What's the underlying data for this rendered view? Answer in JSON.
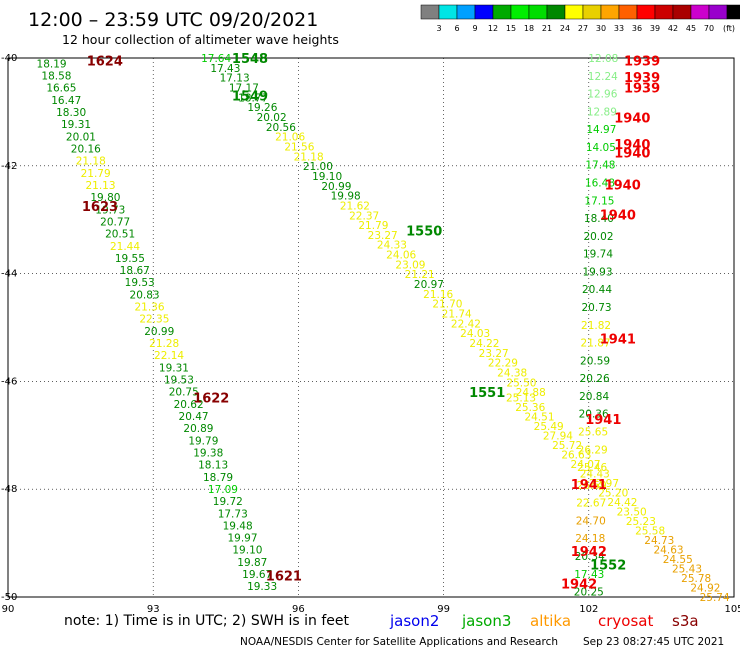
{
  "header": {
    "title": "12:00  – 23:59 UTC 09/20/2021",
    "subtitle": "12 hour collection of altimeter wave heights"
  },
  "colorbar": {
    "colors": [
      "#808080",
      "#00e5e5",
      "#00a0ff",
      "#0000ff",
      "#00aa00",
      "#00ee00",
      "#00dd00",
      "#008800",
      "#ffff00",
      "#e8d000",
      "#ffa500",
      "#ff6000",
      "#ff0000",
      "#cc0000",
      "#aa0000",
      "#cc00cc",
      "#9900cc",
      "#000000"
    ],
    "labels": [
      "3",
      "6",
      "9",
      "12",
      "15",
      "18",
      "21",
      "24",
      "27",
      "30",
      "33",
      "36",
      "39",
      "42",
      "45",
      "70"
    ],
    "unit": "(ft)"
  },
  "map": {
    "lon_range": [
      90,
      105
    ],
    "lat_range": [
      -50,
      -40
    ],
    "x_ticks": [
      {
        "value": 90,
        "label": "90"
      },
      {
        "value": 93,
        "label": "93"
      },
      {
        "value": 96,
        "label": "96"
      },
      {
        "value": 99,
        "label": "99"
      },
      {
        "value": 102,
        "label": "102"
      },
      {
        "value": 105,
        "label": "105"
      }
    ],
    "y_ticks": [
      {
        "value": -40,
        "label": "-40"
      },
      {
        "value": -42,
        "label": "-42"
      },
      {
        "value": -44,
        "label": "-44"
      },
      {
        "value": -46,
        "label": "-46"
      },
      {
        "value": -48,
        "label": "-48"
      },
      {
        "value": -50,
        "label": "-50"
      }
    ],
    "passes": [
      {
        "lon": 92.0,
        "lat": -40.05,
        "label": "1624",
        "color": "#880000"
      },
      {
        "lon": 91.9,
        "lat": -42.75,
        "label": "1623",
        "color": "#880000"
      },
      {
        "lon": 94.2,
        "lat": -46.3,
        "label": "1622",
        "color": "#880000"
      },
      {
        "lon": 95.7,
        "lat": -49.6,
        "label": "1621",
        "color": "#880000"
      },
      {
        "lon": 95.0,
        "lat": -40.0,
        "label": "1548",
        "color": "#008800"
      },
      {
        "lon": 95.0,
        "lat": -40.7,
        "label": "1549",
        "color": "#008800"
      },
      {
        "lon": 98.6,
        "lat": -43.2,
        "label": "1550",
        "color": "#008800"
      },
      {
        "lon": 99.9,
        "lat": -46.2,
        "label": "1551",
        "color": "#008800"
      },
      {
        "lon": 102.4,
        "lat": -49.4,
        "label": "1552",
        "color": "#008800"
      },
      {
        "lon": 103.1,
        "lat": -40.05,
        "label": "1939",
        "color": "#ee0000"
      },
      {
        "lon": 103.1,
        "lat": -40.35,
        "label": "1939",
        "color": "#ee0000"
      },
      {
        "lon": 103.1,
        "lat": -40.55,
        "label": "1939",
        "color": "#ee0000"
      },
      {
        "lon": 102.9,
        "lat": -41.1,
        "label": "1940",
        "color": "#ee0000"
      },
      {
        "lon": 102.9,
        "lat": -41.6,
        "label": "1940",
        "color": "#ee0000"
      },
      {
        "lon": 102.9,
        "lat": -41.75,
        "label": "1940",
        "color": "#ee0000"
      },
      {
        "lon": 102.7,
        "lat": -42.35,
        "label": "1940",
        "color": "#ee0000"
      },
      {
        "lon": 102.6,
        "lat": -42.9,
        "label": "1940",
        "color": "#ee0000"
      },
      {
        "lon": 102.6,
        "lat": -45.2,
        "label": "1941",
        "color": "#ee0000"
      },
      {
        "lon": 102.3,
        "lat": -46.7,
        "label": "1941",
        "color": "#ee0000"
      },
      {
        "lon": 102.0,
        "lat": -47.9,
        "label": "1941",
        "color": "#ee0000"
      },
      {
        "lon": 102.0,
        "lat": -49.15,
        "label": "1942",
        "color": "#ee0000"
      },
      {
        "lon": 101.8,
        "lat": -49.75,
        "label": "1942",
        "color": "#ee0000"
      }
    ],
    "tracks": [
      {
        "name": "altimeter-track-a",
        "start": [
          90.9,
          -40.1
        ],
        "end": [
          95.25,
          -49.8
        ],
        "labels": [
          {
            "v": "18.19",
            "c": "#008800"
          },
          {
            "v": "18.58",
            "c": "#008800"
          },
          {
            "v": "16.65",
            "c": "#008800"
          },
          {
            "v": "16.47",
            "c": "#008800"
          },
          {
            "v": "18.30",
            "c": "#008800"
          },
          {
            "v": "19.31",
            "c": "#008800"
          },
          {
            "v": "20.01",
            "c": "#008800"
          },
          {
            "v": "20.16",
            "c": "#008800"
          },
          {
            "v": "21.18",
            "c": "#eeee00"
          },
          {
            "v": "21.79",
            "c": "#eeee00"
          },
          {
            "v": "21.13",
            "c": "#eeee00"
          },
          {
            "v": "19.80",
            "c": "#008800"
          },
          {
            "v": "19.73",
            "c": "#008800"
          },
          {
            "v": "20.77",
            "c": "#008800"
          },
          {
            "v": "20.51",
            "c": "#008800"
          },
          {
            "v": "21.44",
            "c": "#eeee00"
          },
          {
            "v": "19.55",
            "c": "#008800"
          },
          {
            "v": "18.67",
            "c": "#008800"
          },
          {
            "v": "19.53",
            "c": "#008800"
          },
          {
            "v": "20.83",
            "c": "#008800"
          },
          {
            "v": "21.36",
            "c": "#eeee00"
          },
          {
            "v": "22.35",
            "c": "#eeee00"
          },
          {
            "v": "20.99",
            "c": "#008800"
          },
          {
            "v": "21.28",
            "c": "#eeee00"
          },
          {
            "v": "22.14",
            "c": "#eeee00"
          },
          {
            "v": "19.31",
            "c": "#008800"
          },
          {
            "v": "19.53",
            "c": "#008800"
          },
          {
            "v": "20.75",
            "c": "#008800"
          },
          {
            "v": "20.62",
            "c": "#008800"
          },
          {
            "v": "20.47",
            "c": "#008800"
          },
          {
            "v": "20.89",
            "c": "#008800"
          },
          {
            "v": "19.79",
            "c": "#008800"
          },
          {
            "v": "19.38",
            "c": "#008800"
          },
          {
            "v": "18.13",
            "c": "#008800"
          },
          {
            "v": "18.79",
            "c": "#008800"
          },
          {
            "v": "17.09",
            "c": "#00cc00"
          },
          {
            "v": "19.72",
            "c": "#008800"
          },
          {
            "v": "17.73",
            "c": "#008800"
          },
          {
            "v": "19.48",
            "c": "#008800"
          },
          {
            "v": "19.97",
            "c": "#008800"
          },
          {
            "v": "19.10",
            "c": "#008800"
          },
          {
            "v": "19.87",
            "c": "#008800"
          },
          {
            "v": "19.67",
            "c": "#008800"
          },
          {
            "v": "19.33",
            "c": "#008800"
          }
        ]
      },
      {
        "name": "altimeter-track-b",
        "start": [
          94.3,
          -40.0
        ],
        "end": [
          100.8,
          -46.2
        ],
        "labels": [
          {
            "v": "17.64",
            "c": "#00cc00"
          },
          {
            "v": "17.43",
            "c": "#008800"
          },
          {
            "v": "17.13",
            "c": "#008800"
          },
          {
            "v": "17.17",
            "c": "#008800"
          },
          {
            "v": "18.77",
            "c": "#008800"
          },
          {
            "v": "19.26",
            "c": "#008800"
          },
          {
            "v": "20.02",
            "c": "#008800"
          },
          {
            "v": "20.56",
            "c": "#008800"
          },
          {
            "v": "21.06",
            "c": "#eeee00"
          },
          {
            "v": "21.56",
            "c": "#eeee00"
          },
          {
            "v": "21.18",
            "c": "#eeee00"
          },
          {
            "v": "21.00",
            "c": "#008800"
          },
          {
            "v": "19.10",
            "c": "#008800"
          },
          {
            "v": "20.99",
            "c": "#008800"
          },
          {
            "v": "19.98",
            "c": "#008800"
          },
          {
            "v": "21.62",
            "c": "#eeee00"
          },
          {
            "v": "22.37",
            "c": "#eeee00"
          },
          {
            "v": "21.79",
            "c": "#eeee00"
          },
          {
            "v": "23.27",
            "c": "#eeee00"
          },
          {
            "v": "24.33",
            "c": "#eeee00"
          },
          {
            "v": "24.06",
            "c": "#eeee00"
          },
          {
            "v": "23.09",
            "c": "#eeee00"
          },
          {
            "v": "21.21",
            "c": "#eeee00"
          },
          {
            "v": "20.97",
            "c": "#008800"
          },
          {
            "v": "21.16",
            "c": "#eeee00"
          },
          {
            "v": "21.70",
            "c": "#eeee00"
          },
          {
            "v": "21.74",
            "c": "#eeee00"
          },
          {
            "v": "22.42",
            "c": "#eeee00"
          },
          {
            "v": "24.03",
            "c": "#eeee00"
          },
          {
            "v": "24.22",
            "c": "#eeee00"
          },
          {
            "v": "23.27",
            "c": "#eeee00"
          },
          {
            "v": "22.29",
            "c": "#eeee00"
          },
          {
            "v": "24.38",
            "c": "#eeee00"
          },
          {
            "v": "25.50",
            "c": "#eeee00"
          },
          {
            "v": "24.88",
            "c": "#eeee00"
          }
        ]
      },
      {
        "name": "altimeter-track-c",
        "start": [
          100.6,
          -46.3
        ],
        "end": [
          104.6,
          -50.0
        ],
        "labels": [
          {
            "v": "25.13",
            "c": "#eeee00"
          },
          {
            "v": "25.36",
            "c": "#eeee00"
          },
          {
            "v": "24.51",
            "c": "#eeee00"
          },
          {
            "v": "25.49",
            "c": "#eeee00"
          },
          {
            "v": "27.94",
            "c": "#eeee00"
          },
          {
            "v": "25.72",
            "c": "#eeee00"
          },
          {
            "v": "26.63",
            "c": "#eeee00"
          },
          {
            "v": "24.07",
            "c": "#eeee00"
          },
          {
            "v": "24.43",
            "c": "#eeee00"
          },
          {
            "v": "22.97",
            "c": "#eeee00"
          },
          {
            "v": "25.20",
            "c": "#eeee00"
          },
          {
            "v": "24.42",
            "c": "#eeee00"
          },
          {
            "v": "23.50",
            "c": "#eeee00"
          },
          {
            "v": "25.23",
            "c": "#eeee00"
          },
          {
            "v": "25.58",
            "c": "#eeee00"
          },
          {
            "v": "24.73",
            "c": "#e8a000"
          },
          {
            "v": "24.63",
            "c": "#e8a000"
          },
          {
            "v": "24.55",
            "c": "#e8a000"
          },
          {
            "v": "25.43",
            "c": "#e8a000"
          },
          {
            "v": "25.78",
            "c": "#e8a000"
          },
          {
            "v": "24.92",
            "c": "#e8a000"
          },
          {
            "v": "25.74",
            "c": "#e8a000"
          }
        ]
      },
      {
        "name": "altimeter-track-d",
        "start": [
          102.3,
          -40.0
        ],
        "end": [
          102.0,
          -49.9
        ],
        "labels": [
          {
            "v": "12.08",
            "c": "#88ee88"
          },
          {
            "v": "12.24",
            "c": "#88ee88"
          },
          {
            "v": "12.96",
            "c": "#88ee88"
          },
          {
            "v": "12.89",
            "c": "#88ee88"
          },
          {
            "v": "14.97",
            "c": "#00cc00"
          },
          {
            "v": "14.05",
            "c": "#00cc00"
          },
          {
            "v": "17.48",
            "c": "#00cc00"
          },
          {
            "v": "16.48",
            "c": "#00cc00"
          },
          {
            "v": "17.15",
            "c": "#00cc00"
          },
          {
            "v": "18.40",
            "c": "#008800"
          },
          {
            "v": "20.02",
            "c": "#008800"
          },
          {
            "v": "19.74",
            "c": "#008800"
          },
          {
            "v": "19.93",
            "c": "#008800"
          },
          {
            "v": "20.44",
            "c": "#008800"
          },
          {
            "v": "20.73",
            "c": "#008800"
          },
          {
            "v": "21.82",
            "c": "#eeee00"
          },
          {
            "v": "21.87",
            "c": "#eeee00"
          },
          {
            "v": "20.59",
            "c": "#008800"
          },
          {
            "v": "20.26",
            "c": "#008800"
          },
          {
            "v": "20.84",
            "c": "#008800"
          },
          {
            "v": "20.36",
            "c": "#008800"
          },
          {
            "v": "25.65",
            "c": "#eeee00"
          },
          {
            "v": "26.29",
            "c": "#eeee00"
          },
          {
            "v": "25.46",
            "c": "#eeee00"
          },
          {
            "v": "26.59",
            "c": "#eeee00"
          },
          {
            "v": "22.67",
            "c": "#eeee00"
          },
          {
            "v": "24.70",
            "c": "#e8a000"
          },
          {
            "v": "24.18",
            "c": "#e8a000"
          },
          {
            "v": "20.34",
            "c": "#008800"
          },
          {
            "v": "17.43",
            "c": "#00cc00"
          },
          {
            "v": "20.25",
            "c": "#008800"
          }
        ]
      }
    ]
  },
  "footer": {
    "note": "note:  1) Time is in UTC; 2) SWH is in feet",
    "satellites": [
      {
        "name": "jason2",
        "color": "#0000ee"
      },
      {
        "name": "jason3",
        "color": "#00aa00"
      },
      {
        "name": "altika",
        "color": "#ff9900"
      },
      {
        "name": "cryosat",
        "color": "#ee0000"
      },
      {
        "name": "s3a",
        "color": "#880000"
      }
    ],
    "credit": "NOAA/NESDIS Center for Satellite Applications and Research",
    "timestamp": "Sep 23 08:27:45 UTC 2021"
  }
}
